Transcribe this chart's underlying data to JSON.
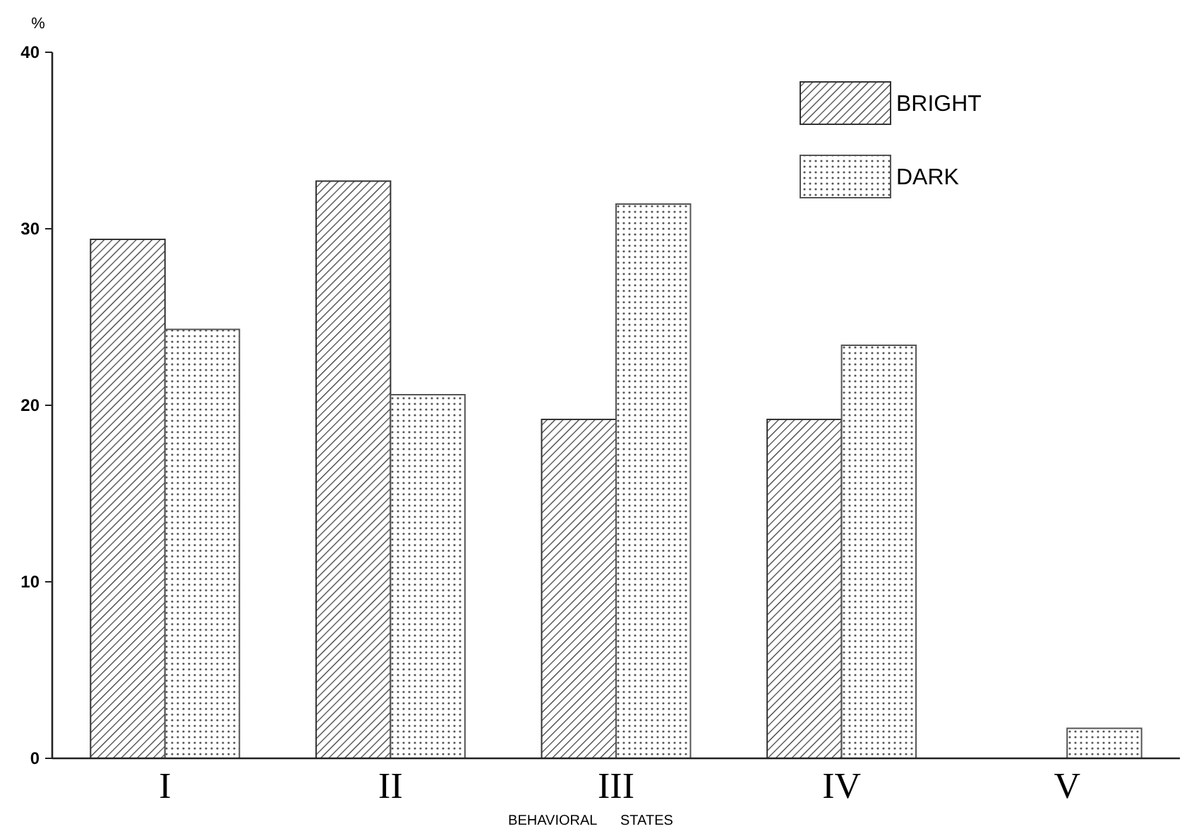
{
  "chart_data": {
    "type": "bar",
    "ylabel": "%",
    "xlabel": "BEHAVIORAL      STATES",
    "categories": [
      "I",
      "II",
      "III",
      "IV",
      "V"
    ],
    "series": [
      {
        "name": "BRIGHT",
        "color": "#333333",
        "values": [
          29.4,
          32.7,
          19.2,
          19.2,
          0
        ]
      },
      {
        "name": "DARK",
        "color": "#555555",
        "values": [
          24.3,
          20.6,
          31.4,
          23.4,
          1.7
        ]
      }
    ],
    "ylim": [
      0,
      40
    ],
    "yticks": [
      0,
      10,
      20,
      30,
      40
    ],
    "legend": "top right"
  }
}
